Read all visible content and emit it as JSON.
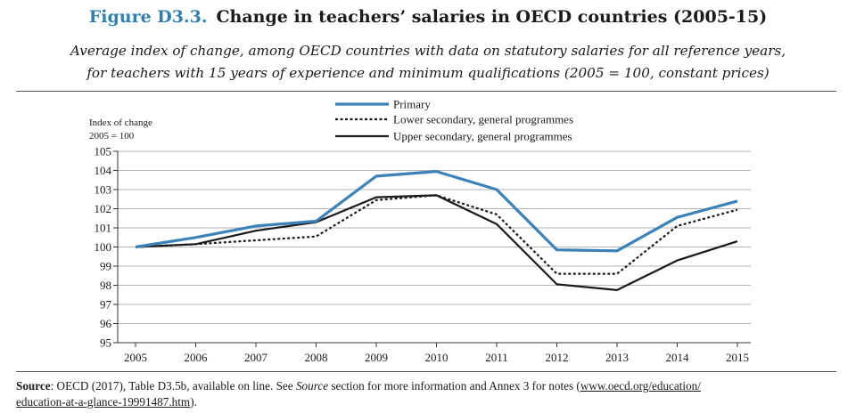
{
  "figure_label": "Figure D3.3.",
  "subtitle_line1": "Average index of change, among OECD countries with data on statutory salaries for all reference years,",
  "subtitle_line2": "for teachers with 15 years of experience and minimum qualifications (2005 = 100, constant prices)",
  "source": {
    "label": "Source",
    "text1": ": OECD (2017), Table D3.5b, available on line. See ",
    "italic": "Source",
    "text2": " section for more information and Annex 3 for notes (",
    "link1": "www.oecd.org/education/",
    "link2": "education-at-a-glance-19991487.htm",
    "text3": ")."
  },
  "colors": {
    "primary": "#3a82b8",
    "axis": "#333333",
    "grid": "#9a9a9a",
    "title_accent": "#2f7fb0"
  },
  "chart_data": {
    "type": "line",
    "title": "Change in teachers’ salaries in OECD countries (2005-15)",
    "ylabel_line1": "Index of change",
    "ylabel_line2": "2005 = 100",
    "xlabel": "",
    "ylim": [
      95,
      105
    ],
    "yticks": [
      95,
      96,
      97,
      98,
      99,
      100,
      101,
      102,
      103,
      104,
      105
    ],
    "grid": true,
    "legend_position": "top-center",
    "categories": [
      "2005",
      "2006",
      "2007",
      "2008",
      "2009",
      "2010",
      "2011",
      "2012",
      "2013",
      "2014",
      "2015"
    ],
    "series": [
      {
        "name": "Primary",
        "style": "solid-blue",
        "values": [
          100.0,
          100.5,
          101.1,
          101.35,
          103.7,
          103.95,
          103.0,
          99.85,
          99.8,
          101.55,
          102.4
        ]
      },
      {
        "name": "Lower secondary, general programmes",
        "style": "dotted-black",
        "values": [
          100.0,
          100.15,
          100.35,
          100.55,
          102.45,
          102.7,
          101.7,
          98.6,
          98.6,
          101.1,
          101.95
        ]
      },
      {
        "name": "Upper secondary, general programmes",
        "style": "solid-black",
        "values": [
          100.0,
          100.15,
          100.85,
          101.3,
          102.6,
          102.7,
          101.2,
          98.05,
          97.75,
          99.3,
          100.3
        ]
      }
    ]
  }
}
